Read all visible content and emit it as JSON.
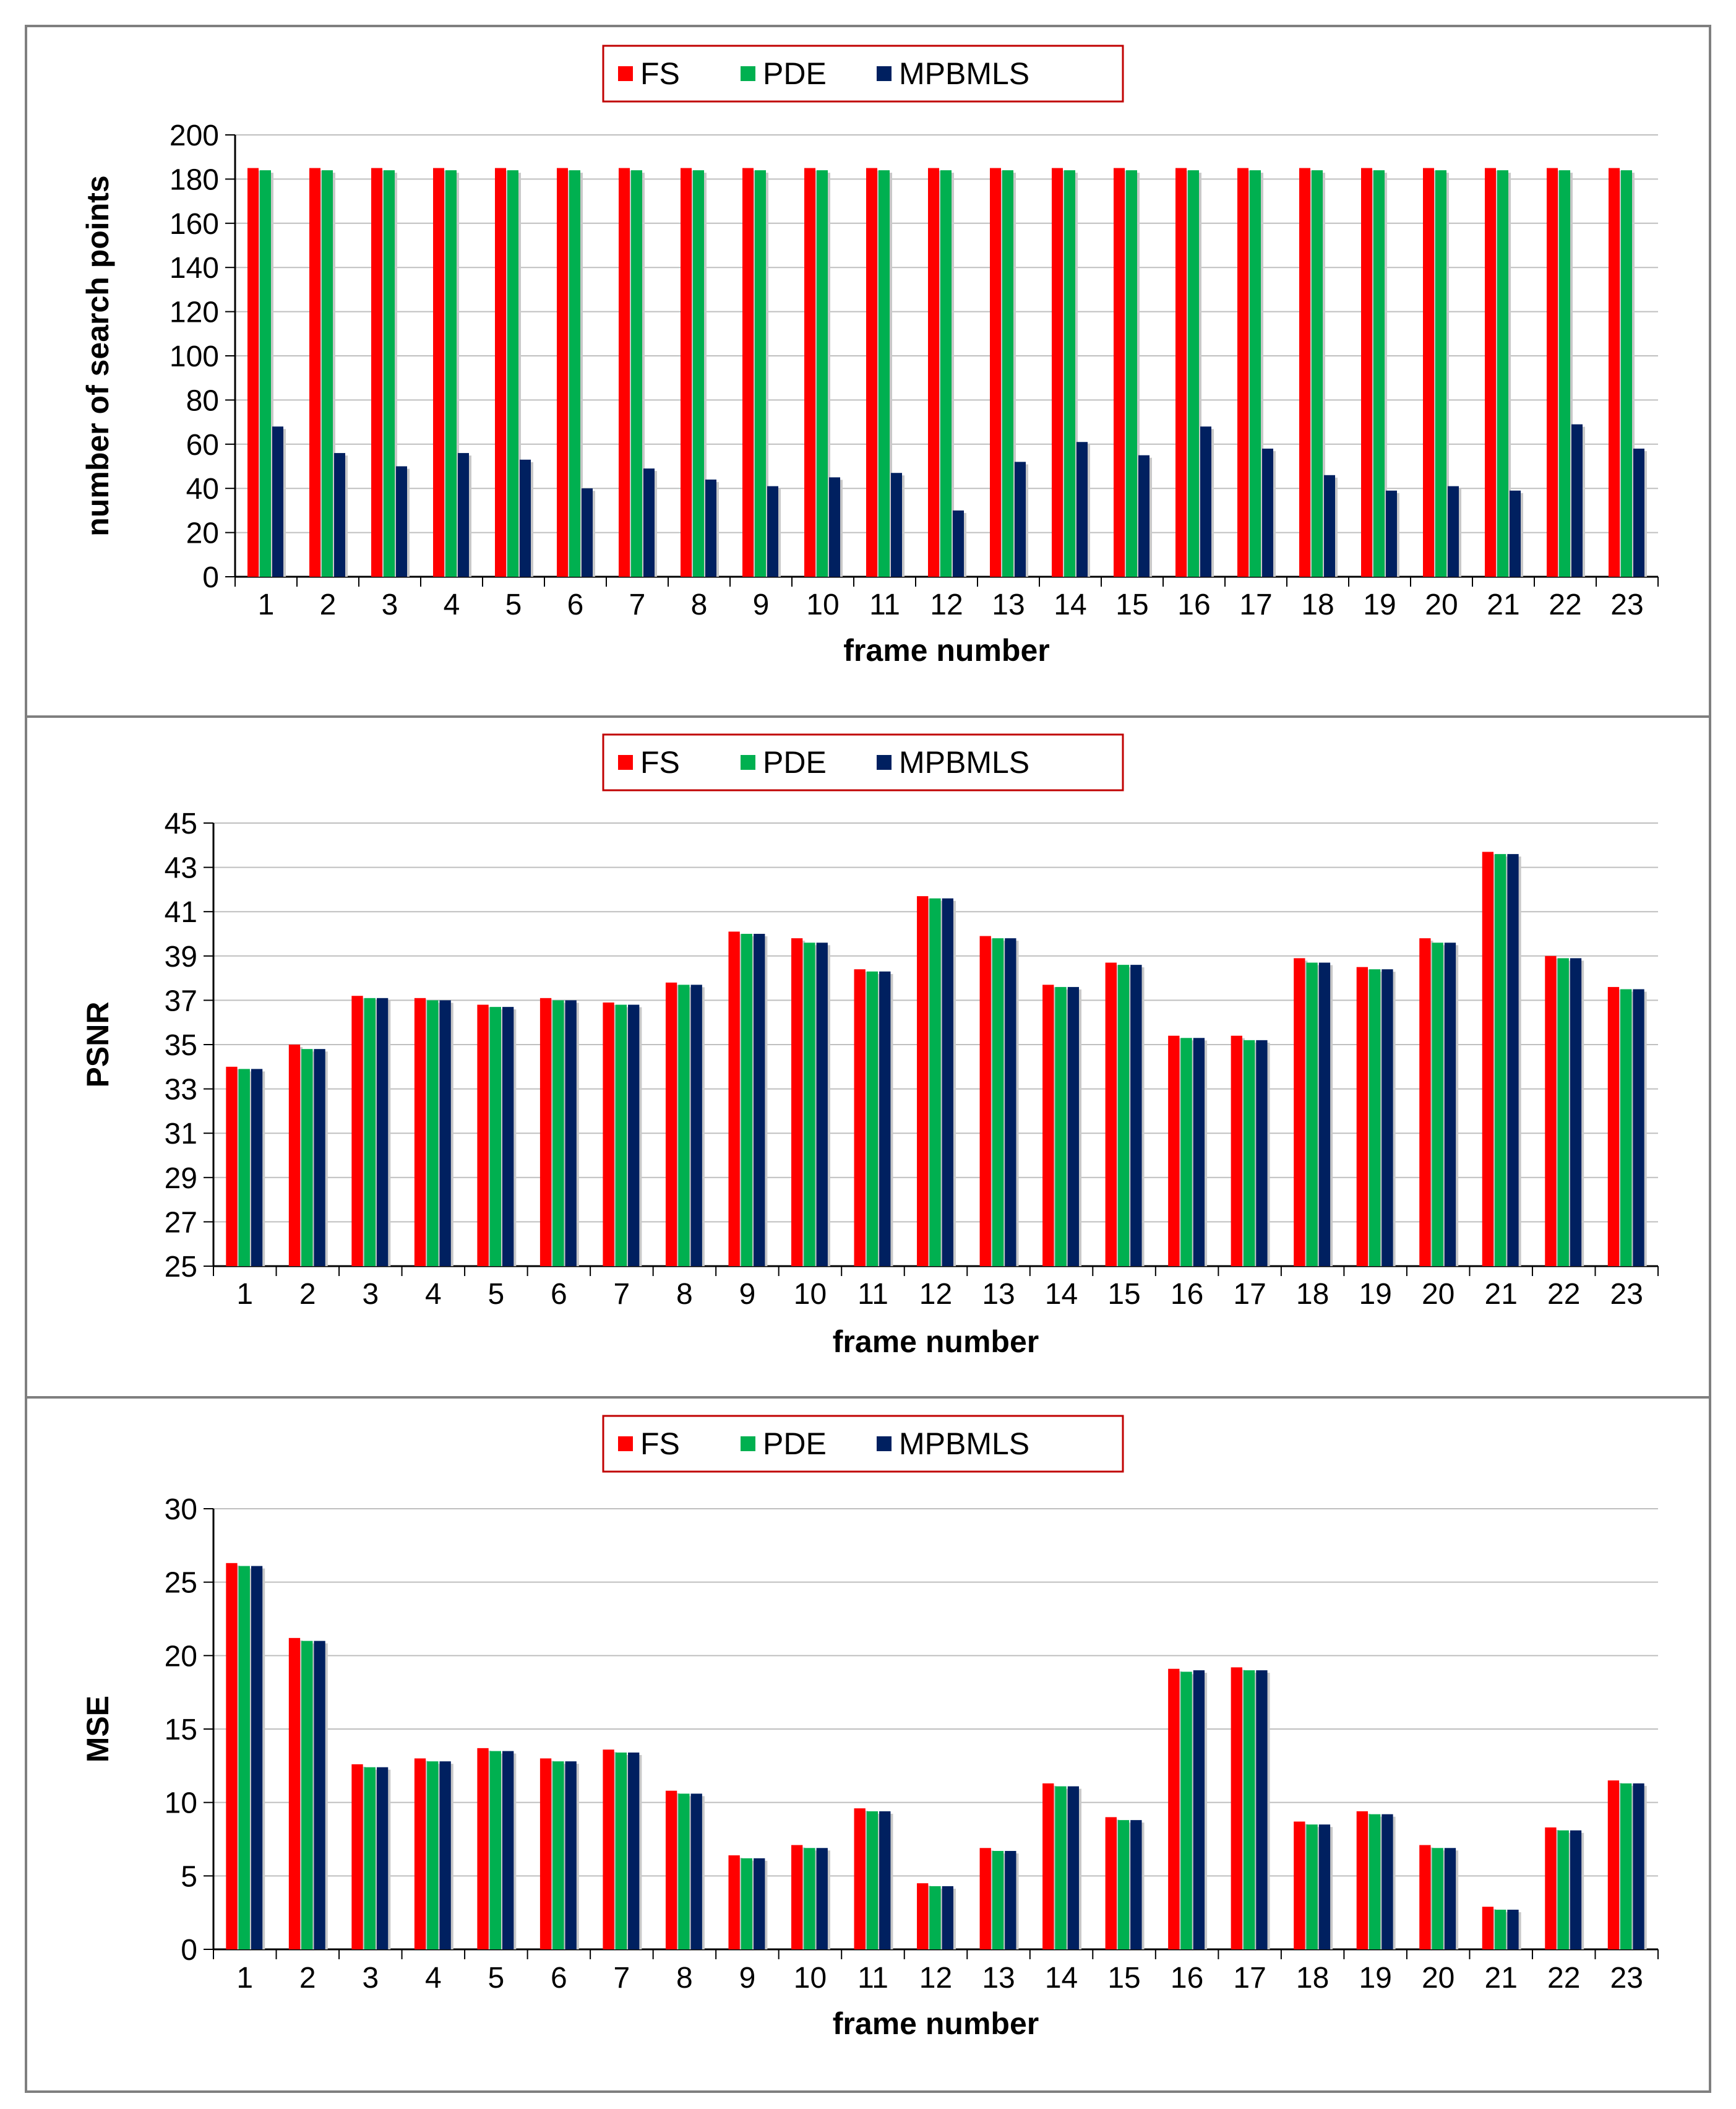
{
  "colors": {
    "FS": "#ff0000",
    "PDE": "#00b050",
    "MPBMLS": "#002060",
    "legend_border": "#c00000",
    "frame": "#7f7f7f",
    "grid": "#bfbfbf"
  },
  "chart_data": [
    {
      "type": "bar",
      "title": "",
      "xlabel": "frame number",
      "ylabel": "number of search points",
      "ylim": [
        0,
        200
      ],
      "yticks": [
        "0",
        "20",
        "40",
        "60",
        "80",
        "100",
        "120",
        "140",
        "160",
        "180",
        "200"
      ],
      "categories": [
        "1",
        "2",
        "3",
        "4",
        "5",
        "6",
        "7",
        "8",
        "9",
        "10",
        "11",
        "12",
        "13",
        "14",
        "15",
        "16",
        "17",
        "18",
        "19",
        "20",
        "21",
        "22",
        "23"
      ],
      "legend_position": "top-center",
      "grid": true,
      "series": [
        {
          "name": "FS",
          "values": [
            185,
            185,
            185,
            185,
            185,
            185,
            185,
            185,
            185,
            185,
            185,
            185,
            185,
            185,
            185,
            185,
            185,
            185,
            185,
            185,
            185,
            185,
            185
          ]
        },
        {
          "name": "PDE",
          "values": [
            184,
            184,
            184,
            184,
            184,
            184,
            184,
            184,
            184,
            184,
            184,
            184,
            184,
            184,
            184,
            184,
            184,
            184,
            184,
            184,
            184,
            184,
            184
          ]
        },
        {
          "name": "MPBMLS",
          "values": [
            68,
            56,
            50,
            56,
            53,
            40,
            49,
            44,
            41,
            45,
            47,
            30,
            52,
            61,
            55,
            68,
            58,
            46,
            39,
            41,
            39,
            69,
            58
          ]
        }
      ]
    },
    {
      "type": "bar",
      "title": "",
      "xlabel": "frame number",
      "ylabel": "PSNR",
      "ylim": [
        25,
        45
      ],
      "yticks": [
        "25",
        "27",
        "29",
        "31",
        "33",
        "35",
        "37",
        "39",
        "41",
        "43",
        "45"
      ],
      "categories": [
        "1",
        "2",
        "3",
        "4",
        "5",
        "6",
        "7",
        "8",
        "9",
        "10",
        "11",
        "12",
        "13",
        "14",
        "15",
        "16",
        "17",
        "18",
        "19",
        "20",
        "21",
        "22",
        "23"
      ],
      "legend_position": "top-center",
      "grid": true,
      "series": [
        {
          "name": "FS",
          "values": [
            34.0,
            35.0,
            37.2,
            37.1,
            36.8,
            37.1,
            36.9,
            37.8,
            40.1,
            39.8,
            38.4,
            41.7,
            39.9,
            37.7,
            38.7,
            35.4,
            35.4,
            38.9,
            38.5,
            39.8,
            43.7,
            39.0,
            37.6
          ]
        },
        {
          "name": "PDE",
          "values": [
            33.9,
            34.8,
            37.1,
            37.0,
            36.7,
            37.0,
            36.8,
            37.7,
            40.0,
            39.6,
            38.3,
            41.6,
            39.8,
            37.6,
            38.6,
            35.3,
            35.2,
            38.7,
            38.4,
            39.6,
            43.6,
            38.9,
            37.5
          ]
        },
        {
          "name": "MPBMLS",
          "values": [
            33.9,
            34.8,
            37.1,
            37.0,
            36.7,
            37.0,
            36.8,
            37.7,
            40.0,
            39.6,
            38.3,
            41.6,
            39.8,
            37.6,
            38.6,
            35.3,
            35.2,
            38.7,
            38.4,
            39.6,
            43.6,
            38.9,
            37.5
          ]
        }
      ]
    },
    {
      "type": "bar",
      "title": "",
      "xlabel": "frame number",
      "ylabel": "MSE",
      "ylim": [
        0,
        30
      ],
      "yticks": [
        "0",
        "5",
        "10",
        "15",
        "20",
        "25",
        "30"
      ],
      "categories": [
        "1",
        "2",
        "3",
        "4",
        "5",
        "6",
        "7",
        "8",
        "9",
        "10",
        "11",
        "12",
        "13",
        "14",
        "15",
        "16",
        "17",
        "18",
        "19",
        "20",
        "21",
        "22",
        "23"
      ],
      "legend_position": "top-center",
      "grid": true,
      "series": [
        {
          "name": "FS",
          "values": [
            26.3,
            21.2,
            12.6,
            13.0,
            13.7,
            13.0,
            13.6,
            10.8,
            6.4,
            7.1,
            9.6,
            4.5,
            6.9,
            11.3,
            9.0,
            19.1,
            19.2,
            8.7,
            9.4,
            7.1,
            2.9,
            8.3,
            11.5
          ]
        },
        {
          "name": "PDE",
          "values": [
            26.1,
            21.0,
            12.4,
            12.8,
            13.5,
            12.8,
            13.4,
            10.6,
            6.2,
            6.9,
            9.4,
            4.3,
            6.7,
            11.1,
            8.8,
            18.9,
            19.0,
            8.5,
            9.2,
            6.9,
            2.7,
            8.1,
            11.3
          ]
        },
        {
          "name": "MPBMLS",
          "values": [
            26.1,
            21.0,
            12.4,
            12.8,
            13.5,
            12.8,
            13.4,
            10.6,
            6.2,
            6.9,
            9.4,
            4.3,
            6.7,
            11.1,
            8.8,
            19.0,
            19.0,
            8.5,
            9.2,
            6.9,
            2.7,
            8.1,
            11.3
          ]
        }
      ]
    }
  ]
}
